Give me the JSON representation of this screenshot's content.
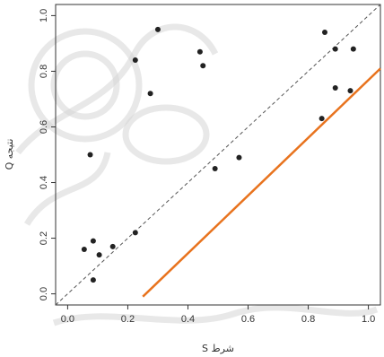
{
  "chart_data": {
    "type": "scatter",
    "xlabel": "S شرط",
    "ylabel": "Q نتیجه",
    "xlim": [
      -0.04,
      1.04
    ],
    "ylim": [
      -0.04,
      1.04
    ],
    "x_ticks": [
      0.0,
      0.2,
      0.4,
      0.6,
      0.8,
      1.0
    ],
    "y_ticks": [
      0.0,
      0.2,
      0.4,
      0.6,
      0.8,
      1.0
    ],
    "x_tick_labels": [
      "0.0",
      "0.2",
      "0.4",
      "0.6",
      "0.8",
      "1.0"
    ],
    "y_tick_labels": [
      "0.0",
      "0.2",
      "0.4",
      "0.6",
      "0.8",
      "1.0"
    ],
    "grid": false,
    "points": [
      {
        "x": 0.055,
        "y": 0.16
      },
      {
        "x": 0.075,
        "y": 0.5
      },
      {
        "x": 0.085,
        "y": 0.19
      },
      {
        "x": 0.085,
        "y": 0.05
      },
      {
        "x": 0.105,
        "y": 0.14
      },
      {
        "x": 0.15,
        "y": 0.17
      },
      {
        "x": 0.225,
        "y": 0.22
      },
      {
        "x": 0.225,
        "y": 0.84
      },
      {
        "x": 0.275,
        "y": 0.72
      },
      {
        "x": 0.3,
        "y": 0.95
      },
      {
        "x": 0.44,
        "y": 0.87
      },
      {
        "x": 0.45,
        "y": 0.82
      },
      {
        "x": 0.49,
        "y": 0.45
      },
      {
        "x": 0.57,
        "y": 0.49
      },
      {
        "x": 0.845,
        "y": 0.63
      },
      {
        "x": 0.855,
        "y": 0.94
      },
      {
        "x": 0.89,
        "y": 0.88
      },
      {
        "x": 0.89,
        "y": 0.74
      },
      {
        "x": 0.94,
        "y": 0.73
      },
      {
        "x": 0.95,
        "y": 0.88
      }
    ],
    "reference_lines": [
      {
        "style": "dashed",
        "color": "#555555",
        "x": [
          -0.04,
          1.04
        ],
        "y": [
          -0.04,
          1.04
        ]
      },
      {
        "style": "solid",
        "color": "#e8731e",
        "x": [
          0.25,
          1.04
        ],
        "y": [
          -0.01,
          0.81
        ]
      }
    ],
    "point_color": "#222222"
  }
}
